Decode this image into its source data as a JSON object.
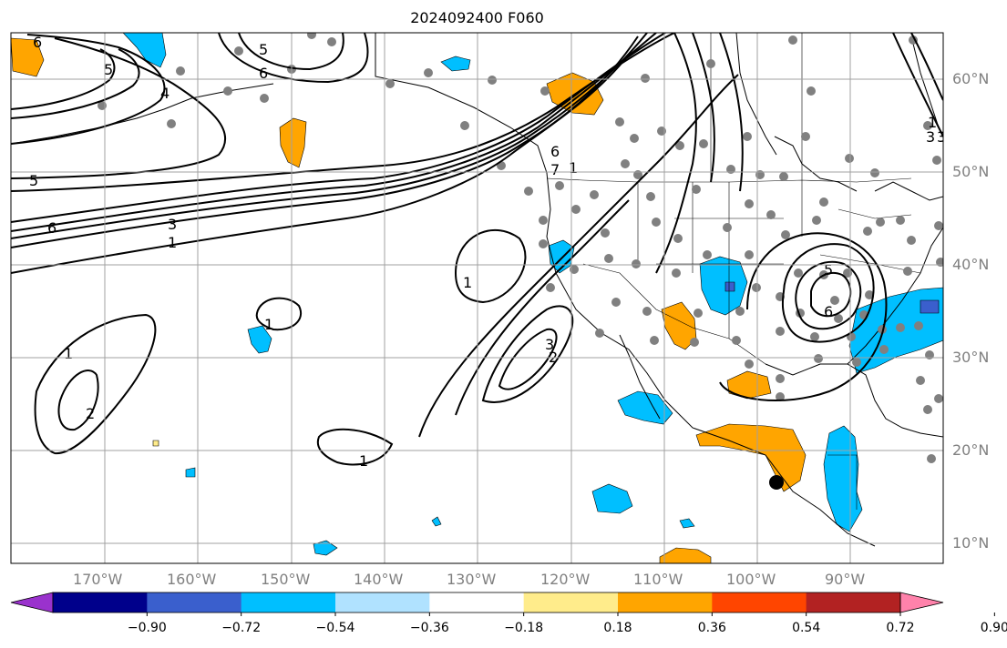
{
  "title": "2024092400 F060",
  "lon_labels": [
    "170°W",
    "160°W",
    "150°W",
    "140°W",
    "130°W",
    "120°W",
    "110°W",
    "100°W",
    "90°W"
  ],
  "lat_labels": [
    "60°N",
    "50°N",
    "40°N",
    "30°N",
    "20°N",
    "10°N"
  ],
  "colorbar": {
    "ticks": [
      "−0.90",
      "−0.72",
      "−0.54",
      "−0.36",
      "−0.18",
      "0.18",
      "0.36",
      "0.54",
      "0.72",
      "0.90"
    ],
    "colors": [
      "#9a32cd",
      "#00008b",
      "#3a5fcd",
      "#00bfff",
      "#b0e2ff",
      "#ffffff",
      "#ffec8b",
      "#ffa500",
      "#ff4500",
      "#b22222",
      "#ff82ab"
    ]
  },
  "contour_labels": [
    "6",
    "5",
    "4",
    "6",
    "5",
    "5",
    "6",
    "3",
    "1",
    "1",
    "1",
    "2",
    "1",
    "1",
    "2",
    "3",
    "6",
    "7",
    "5",
    "6",
    "1",
    "3",
    "3",
    "1"
  ],
  "fill_colors": {
    "positive": "#ffa500",
    "negative": "#00bfff",
    "deep_negative": "#3a5fcd",
    "light_positive": "#ffec8b"
  }
}
